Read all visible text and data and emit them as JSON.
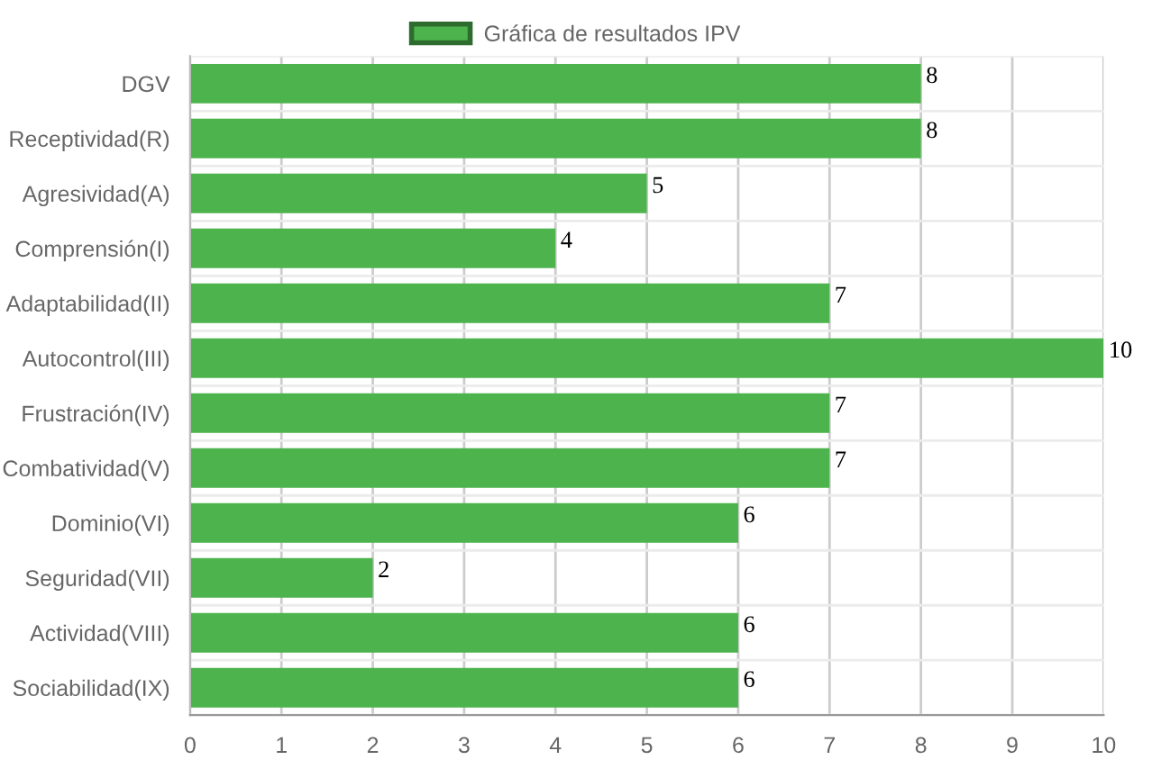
{
  "chart_data": {
    "type": "bar",
    "orientation": "horizontal",
    "categories": [
      "DGV",
      "Receptividad(R)",
      "Agresividad(A)",
      "Comprensión(I)",
      "Adaptabilidad(II)",
      "Autocontrol(III)",
      "Frustración(IV)",
      "Combatividad(V)",
      "Dominio(VI)",
      "Seguridad(VII)",
      "Actividad(VIII)",
      "Sociabilidad(IX)"
    ],
    "series": [
      {
        "name": "Gráfica de resultados IPV",
        "color": "#4db34d",
        "values": [
          8,
          8,
          5,
          4,
          7,
          10,
          7,
          7,
          6,
          2,
          6,
          6
        ]
      }
    ],
    "xlim": [
      0,
      10
    ],
    "xticks": [
      0,
      1,
      2,
      3,
      4,
      5,
      6,
      7,
      8,
      9,
      10
    ],
    "grid": true,
    "legend": "top",
    "data_labels": true
  }
}
